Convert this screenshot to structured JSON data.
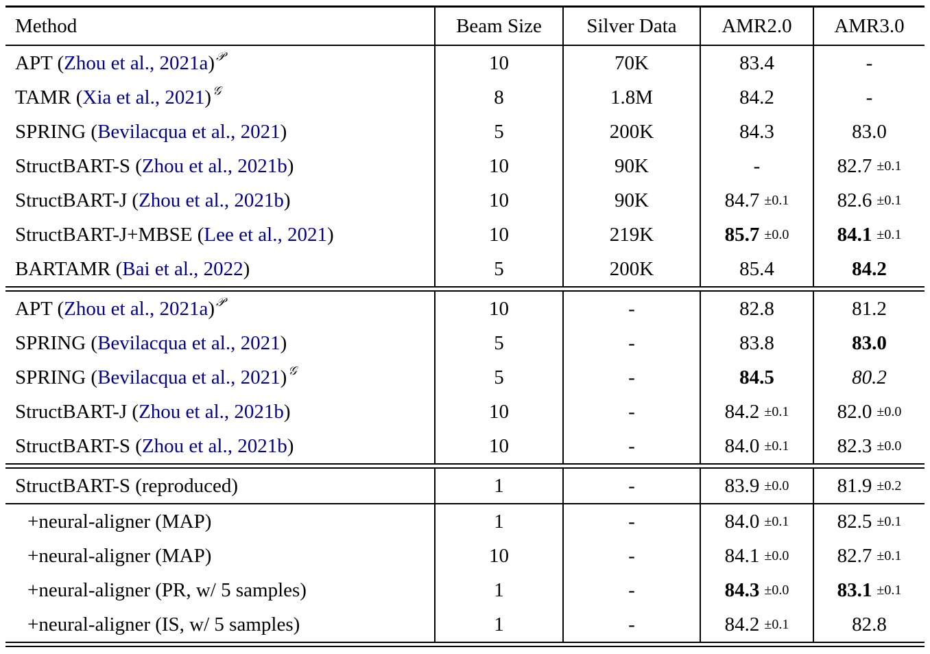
{
  "colors": {
    "citation": "#00008B",
    "text": "#000000",
    "rule": "#000000"
  },
  "header": {
    "cells": [
      "Method",
      "Beam Size",
      "Silver Data",
      "AMR2.0",
      "AMR3.0"
    ]
  },
  "sections": [
    {
      "name": "with-silver-data",
      "rows": [
        {
          "method": [
            {
              "t": "APT ("
            },
            {
              "t": "Zhou et al., 2021a",
              "cite": true
            },
            {
              "t": ")"
            },
            {
              "t": "𝒫",
              "sup": true
            }
          ],
          "beam": "10",
          "silver": "70K",
          "amr2": {
            "v": "83.4"
          },
          "amr3": {
            "v": "-"
          }
        },
        {
          "method": [
            {
              "t": "TAMR ("
            },
            {
              "t": "Xia et al., 2021",
              "cite": true
            },
            {
              "t": ")"
            },
            {
              "t": "𝒢",
              "sup": true
            }
          ],
          "beam": "8",
          "silver": "1.8M",
          "amr2": {
            "v": "84.2"
          },
          "amr3": {
            "v": "-"
          }
        },
        {
          "method": [
            {
              "t": "SPRING ("
            },
            {
              "t": "Bevilacqua et al., 2021",
              "cite": true
            },
            {
              "t": ")"
            }
          ],
          "beam": "5",
          "silver": "200K",
          "amr2": {
            "v": "84.3"
          },
          "amr3": {
            "v": "83.0"
          }
        },
        {
          "method": [
            {
              "t": "StructBART-S ("
            },
            {
              "t": "Zhou et al., 2021b",
              "cite": true
            },
            {
              "t": ")"
            }
          ],
          "beam": "10",
          "silver": "90K",
          "amr2": {
            "v": "-"
          },
          "amr3": {
            "v": "82.7",
            "pm": "±0.1"
          }
        },
        {
          "method": [
            {
              "t": "StructBART-J ("
            },
            {
              "t": "Zhou et al., 2021b",
              "cite": true
            },
            {
              "t": ")"
            }
          ],
          "beam": "10",
          "silver": "90K",
          "amr2": {
            "v": "84.7",
            "pm": "±0.1"
          },
          "amr3": {
            "v": "82.6",
            "pm": "±0.1"
          }
        },
        {
          "method": [
            {
              "t": "StructBART-J+MBSE ("
            },
            {
              "t": "Lee et al., 2021",
              "cite": true
            },
            {
              "t": ")"
            }
          ],
          "beam": "10",
          "silver": "219K",
          "amr2": {
            "v": "85.7",
            "pm": "±0.0",
            "bold": true
          },
          "amr3": {
            "v": "84.1",
            "pm": "±0.1",
            "bold": true
          }
        },
        {
          "method": [
            {
              "t": "BARTAMR ("
            },
            {
              "t": "Bai et al., 2022",
              "cite": true
            },
            {
              "t": ")"
            }
          ],
          "beam": "5",
          "silver": "200K",
          "amr2": {
            "v": "85.4"
          },
          "amr3": {
            "v": "84.2",
            "bold": true
          }
        }
      ]
    },
    {
      "name": "without-silver-data",
      "rows": [
        {
          "method": [
            {
              "t": "APT ("
            },
            {
              "t": "Zhou et al., 2021a",
              "cite": true
            },
            {
              "t": ")"
            },
            {
              "t": "𝒫",
              "sup": true
            }
          ],
          "beam": "10",
          "silver": "-",
          "amr2": {
            "v": "82.8"
          },
          "amr3": {
            "v": "81.2"
          }
        },
        {
          "method": [
            {
              "t": "SPRING ("
            },
            {
              "t": "Bevilacqua et al., 2021",
              "cite": true
            },
            {
              "t": ")"
            }
          ],
          "beam": "5",
          "silver": "-",
          "amr2": {
            "v": "83.8"
          },
          "amr3": {
            "v": "83.0",
            "bold": true
          }
        },
        {
          "method": [
            {
              "t": "SPRING ("
            },
            {
              "t": "Bevilacqua et al., 2021",
              "cite": true
            },
            {
              "t": ")"
            },
            {
              "t": "𝒢",
              "sup": true
            }
          ],
          "beam": "5",
          "silver": "-",
          "amr2": {
            "v": "84.5",
            "bold": true
          },
          "amr3": {
            "v": "80.2",
            "italic": true
          }
        },
        {
          "method": [
            {
              "t": "StructBART-J ("
            },
            {
              "t": "Zhou et al., 2021b",
              "cite": true
            },
            {
              "t": ")"
            }
          ],
          "beam": "10",
          "silver": "-",
          "amr2": {
            "v": "84.2",
            "pm": "±0.1"
          },
          "amr3": {
            "v": "82.0",
            "pm": "±0.0"
          }
        },
        {
          "method": [
            {
              "t": "StructBART-S ("
            },
            {
              "t": "Zhou et al., 2021b",
              "cite": true
            },
            {
              "t": ")"
            }
          ],
          "beam": "10",
          "silver": "-",
          "amr2": {
            "v": "84.0",
            "pm": "±0.1"
          },
          "amr3": {
            "v": "82.3",
            "pm": "±0.0"
          }
        }
      ]
    },
    {
      "name": "reproduced-baseline",
      "rows": [
        {
          "method": [
            {
              "t": "StructBART-S (reproduced)"
            }
          ],
          "beam": "1",
          "silver": "-",
          "amr2": {
            "v": "83.9",
            "pm": "±0.0"
          },
          "amr3": {
            "v": "81.9",
            "pm": "±0.2"
          }
        }
      ]
    },
    {
      "name": "neural-aligner-variants",
      "rows": [
        {
          "indent": true,
          "method": [
            {
              "t": "+neural-aligner (MAP)"
            }
          ],
          "beam": "1",
          "silver": "-",
          "amr2": {
            "v": "84.0",
            "pm": "±0.1"
          },
          "amr3": {
            "v": "82.5",
            "pm": "±0.1"
          }
        },
        {
          "indent": true,
          "method": [
            {
              "t": "+neural-aligner (MAP)"
            }
          ],
          "beam": "10",
          "silver": "-",
          "amr2": {
            "v": "84.1",
            "pm": "±0.0"
          },
          "amr3": {
            "v": "82.7",
            "pm": "±0.1"
          }
        },
        {
          "indent": true,
          "method": [
            {
              "t": "+neural-aligner (PR, w/ 5 samples)"
            }
          ],
          "beam": "1",
          "silver": "-",
          "amr2": {
            "v": "84.3",
            "pm": "±0.0",
            "bold": true
          },
          "amr3": {
            "v": "83.1",
            "pm": "±0.1",
            "bold": true
          }
        },
        {
          "indent": true,
          "method": [
            {
              "t": "+neural-aligner (IS, w/ 5 samples)"
            }
          ],
          "beam": "1",
          "silver": "-",
          "amr2": {
            "v": "84.2",
            "pm": "±0.1"
          },
          "amr3": {
            "v": "82.8"
          }
        }
      ]
    }
  ]
}
